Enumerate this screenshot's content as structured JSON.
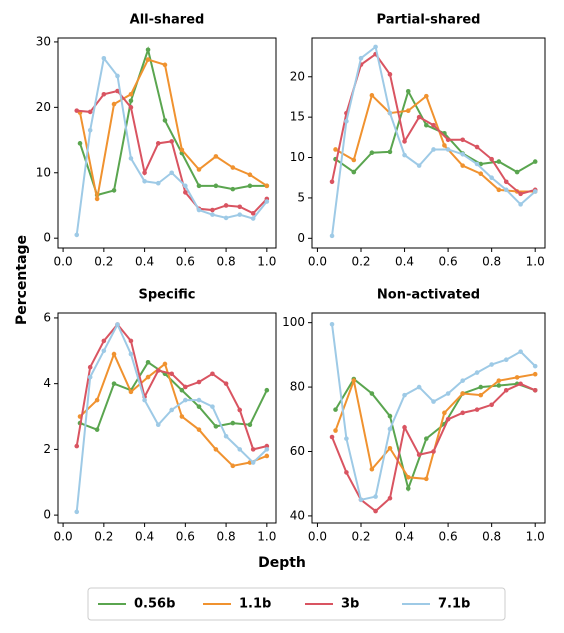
{
  "xlabel": "Depth",
  "ylabel": "Percentage",
  "chart_data": [
    {
      "type": "line",
      "title": "All-shared",
      "xlim": [
        -0.025,
        1.045
      ],
      "ylim": [
        -1.5,
        30.6
      ],
      "xticks": [
        {
          "value": 0,
          "label": "0.0"
        },
        {
          "value": 0.2,
          "label": "0.2"
        },
        {
          "value": 0.4,
          "label": "0.4"
        },
        {
          "value": 0.6,
          "label": "0.6"
        },
        {
          "value": 0.8,
          "label": "0.8"
        },
        {
          "value": 1,
          "label": "1.0"
        }
      ],
      "yticks": [
        0,
        10,
        20,
        30
      ],
      "series": [
        {
          "name": "0.56b",
          "color": "#5aa54f",
          "x": [
            0.083,
            0.167,
            0.25,
            0.333,
            0.417,
            0.5,
            0.583,
            0.667,
            0.75,
            0.833,
            0.917,
            1.0
          ],
          "values": [
            14.5,
            6.6,
            7.3,
            21,
            28.8,
            18,
            13,
            8,
            8,
            7.5,
            8,
            8
          ]
        },
        {
          "name": "1.1b",
          "color": "#f0922f",
          "x": [
            0.083,
            0.167,
            0.25,
            0.333,
            0.417,
            0.5,
            0.583,
            0.667,
            0.75,
            0.833,
            0.917,
            1.0
          ],
          "values": [
            19.2,
            6,
            20.5,
            22,
            27.3,
            26.5,
            13.5,
            10.5,
            12.5,
            10.8,
            9.7,
            8
          ]
        },
        {
          "name": "3b",
          "color": "#d95461",
          "x": [
            0.067,
            0.133,
            0.2,
            0.267,
            0.333,
            0.4,
            0.467,
            0.533,
            0.6,
            0.667,
            0.733,
            0.8,
            0.867,
            0.933,
            1.0
          ],
          "values": [
            19.5,
            19.3,
            22,
            22.5,
            20,
            10,
            14.5,
            14.8,
            7,
            4.5,
            4.3,
            5,
            4.8,
            3.8,
            6
          ]
        },
        {
          "name": "7.1b",
          "color": "#9ecae6",
          "x": [
            0.067,
            0.133,
            0.2,
            0.267,
            0.333,
            0.4,
            0.467,
            0.533,
            0.6,
            0.667,
            0.733,
            0.8,
            0.867,
            0.933,
            1.0
          ],
          "values": [
            0.5,
            16.5,
            27.5,
            24.8,
            12.2,
            8.7,
            8.4,
            10,
            8,
            4.3,
            3.6,
            3.1,
            3.6,
            3,
            5.6
          ]
        }
      ]
    },
    {
      "type": "line",
      "title": "Partial-shared",
      "xlim": [
        -0.025,
        1.045
      ],
      "ylim": [
        -1.2,
        24.8
      ],
      "xticks": [
        {
          "value": 0,
          "label": "0.0"
        },
        {
          "value": 0.2,
          "label": "0.2"
        },
        {
          "value": 0.4,
          "label": "0.4"
        },
        {
          "value": 0.6,
          "label": "0.6"
        },
        {
          "value": 0.8,
          "label": "0.8"
        },
        {
          "value": 1,
          "label": "1.0"
        }
      ],
      "yticks": [
        0,
        5,
        10,
        15,
        20
      ],
      "series": [
        {
          "name": "0.56b",
          "color": "#5aa54f",
          "x": [
            0.083,
            0.167,
            0.25,
            0.333,
            0.417,
            0.5,
            0.583,
            0.667,
            0.75,
            0.833,
            0.917,
            1.0
          ],
          "values": [
            9.8,
            8.2,
            10.6,
            10.7,
            18.2,
            14,
            13,
            10.5,
            9.2,
            9.5,
            8.2,
            9.5
          ]
        },
        {
          "name": "1.1b",
          "color": "#f0922f",
          "x": [
            0.083,
            0.167,
            0.25,
            0.333,
            0.417,
            0.5,
            0.583,
            0.667,
            0.75,
            0.833,
            0.917,
            1.0
          ],
          "values": [
            11,
            9.7,
            17.7,
            15.5,
            15.8,
            17.6,
            11.5,
            9,
            8,
            6,
            5.8,
            5.8
          ]
        },
        {
          "name": "3b",
          "color": "#d95461",
          "x": [
            0.067,
            0.133,
            0.2,
            0.267,
            0.333,
            0.4,
            0.467,
            0.533,
            0.6,
            0.667,
            0.733,
            0.8,
            0.867,
            0.933,
            1.0
          ],
          "values": [
            7,
            15.5,
            21.5,
            22.8,
            20.3,
            12,
            15,
            14,
            12.2,
            12.2,
            11.3,
            9.8,
            7,
            5.5,
            6
          ]
        },
        {
          "name": "7.1b",
          "color": "#9ecae6",
          "x": [
            0.067,
            0.133,
            0.2,
            0.267,
            0.333,
            0.4,
            0.467,
            0.533,
            0.6,
            0.667,
            0.733,
            0.8,
            0.867,
            0.933,
            1.0
          ],
          "values": [
            0.3,
            14.5,
            22.3,
            23.7,
            15.5,
            10.3,
            9,
            11,
            11,
            10.4,
            9.2,
            7.5,
            6,
            4.2,
            5.8
          ]
        }
      ]
    },
    {
      "type": "line",
      "title": "Specific",
      "xlim": [
        -0.025,
        1.045
      ],
      "ylim": [
        -0.24,
        6.15
      ],
      "xticks": [
        {
          "value": 0,
          "label": "0.0"
        },
        {
          "value": 0.2,
          "label": "0.2"
        },
        {
          "value": 0.4,
          "label": "0.4"
        },
        {
          "value": 0.6,
          "label": "0.6"
        },
        {
          "value": 0.8,
          "label": "0.8"
        },
        {
          "value": 1,
          "label": "1.0"
        }
      ],
      "yticks": [
        0,
        2,
        4,
        6
      ],
      "series": [
        {
          "name": "0.56b",
          "color": "#5aa54f",
          "x": [
            0.083,
            0.167,
            0.25,
            0.333,
            0.417,
            0.5,
            0.583,
            0.667,
            0.75,
            0.833,
            0.917,
            1.0
          ],
          "values": [
            2.8,
            2.6,
            4,
            3.8,
            4.65,
            4.3,
            3.8,
            3.3,
            2.7,
            2.8,
            2.75,
            3.8
          ]
        },
        {
          "name": "1.1b",
          "color": "#f0922f",
          "x": [
            0.083,
            0.167,
            0.25,
            0.333,
            0.417,
            0.5,
            0.583,
            0.667,
            0.75,
            0.833,
            0.917,
            1.0
          ],
          "values": [
            3,
            3.5,
            4.9,
            3.75,
            4.2,
            4.6,
            3,
            2.6,
            2,
            1.5,
            1.6,
            1.8
          ]
        },
        {
          "name": "3b",
          "color": "#d95461",
          "x": [
            0.067,
            0.133,
            0.2,
            0.267,
            0.333,
            0.4,
            0.467,
            0.533,
            0.6,
            0.667,
            0.733,
            0.8,
            0.867,
            0.933,
            1.0
          ],
          "values": [
            2.1,
            4.5,
            5.3,
            5.8,
            5.3,
            3.6,
            4.4,
            4.3,
            3.9,
            4.05,
            4.3,
            4,
            3.2,
            2,
            2.1
          ]
        },
        {
          "name": "7.1b",
          "color": "#9ecae6",
          "x": [
            0.067,
            0.133,
            0.2,
            0.267,
            0.333,
            0.4,
            0.467,
            0.533,
            0.6,
            0.667,
            0.733,
            0.8,
            0.867,
            0.933,
            1.0
          ],
          "values": [
            0.1,
            4.2,
            5,
            5.8,
            4.9,
            3.5,
            2.75,
            3.2,
            3.5,
            3.5,
            3.3,
            2.4,
            2,
            1.6,
            2
          ]
        }
      ]
    },
    {
      "type": "line",
      "title": "Non-activated",
      "xlim": [
        -0.025,
        1.045
      ],
      "ylim": [
        37.8,
        103
      ],
      "xticks": [
        {
          "value": 0,
          "label": "0.0"
        },
        {
          "value": 0.2,
          "label": "0.2"
        },
        {
          "value": 0.4,
          "label": "0.4"
        },
        {
          "value": 0.6,
          "label": "0.6"
        },
        {
          "value": 0.8,
          "label": "0.8"
        },
        {
          "value": 1,
          "label": "1.0"
        }
      ],
      "yticks": [
        40,
        60,
        80,
        100
      ],
      "series": [
        {
          "name": "0.56b",
          "color": "#5aa54f",
          "x": [
            0.083,
            0.167,
            0.25,
            0.333,
            0.417,
            0.5,
            0.583,
            0.667,
            0.75,
            0.833,
            0.917,
            1.0
          ],
          "values": [
            73,
            82.5,
            78,
            71,
            48.5,
            64,
            68.5,
            78,
            80,
            80.5,
            81,
            79
          ]
        },
        {
          "name": "1.1b",
          "color": "#f0922f",
          "x": [
            0.083,
            0.167,
            0.25,
            0.333,
            0.417,
            0.5,
            0.583,
            0.667,
            0.75,
            0.833,
            0.917,
            1.0
          ],
          "values": [
            66.5,
            82,
            54.5,
            61,
            52,
            51.5,
            72,
            78,
            77.5,
            82,
            83,
            84
          ]
        },
        {
          "name": "3b",
          "color": "#d95461",
          "x": [
            0.067,
            0.133,
            0.2,
            0.267,
            0.333,
            0.4,
            0.467,
            0.533,
            0.6,
            0.667,
            0.733,
            0.8,
            0.867,
            0.933,
            1.0
          ],
          "values": [
            64.5,
            53.5,
            45,
            41.5,
            45.5,
            67.5,
            59,
            60,
            70,
            72,
            73,
            74.5,
            79,
            81,
            79
          ]
        },
        {
          "name": "7.1b",
          "color": "#9ecae6",
          "x": [
            0.067,
            0.133,
            0.2,
            0.267,
            0.333,
            0.4,
            0.467,
            0.533,
            0.6,
            0.667,
            0.733,
            0.8,
            0.867,
            0.933,
            1.0
          ],
          "values": [
            99.5,
            64,
            45,
            46,
            67,
            77.5,
            80,
            75.5,
            78,
            82,
            84.5,
            87,
            88.5,
            91,
            86.5
          ]
        }
      ]
    }
  ]
}
